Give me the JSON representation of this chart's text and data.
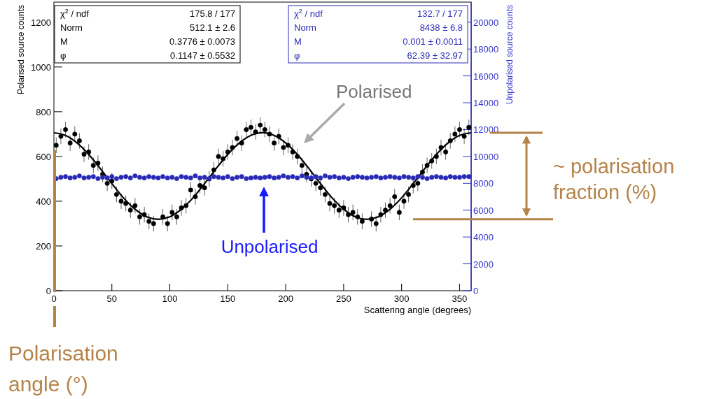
{
  "chart_data": {
    "type": "scatter",
    "xlabel": "Scattering angle (degrees)",
    "ylabel": "Polarised source counts",
    "y2label": "Unpolarised source counts",
    "xlim": [
      0,
      360
    ],
    "xticks": [
      0,
      50,
      100,
      150,
      200,
      250,
      300,
      350
    ],
    "ylim": [
      0,
      1290
    ],
    "yticks": [
      0,
      200,
      400,
      600,
      800,
      1000,
      1200
    ],
    "y2lim": [
      0,
      21500
    ],
    "y2ticks": [
      0,
      2000,
      4000,
      6000,
      8000,
      10000,
      12000,
      14000,
      16000,
      18000,
      20000
    ],
    "marker": "circle",
    "grid": false,
    "series": [
      {
        "color": "#000000",
        "x": [
          2,
          6,
          10,
          14,
          18,
          22,
          26,
          30,
          34,
          38,
          42,
          46,
          50,
          54,
          58,
          62,
          66,
          70,
          74,
          78,
          82,
          86,
          94,
          98,
          102,
          106,
          110,
          114,
          118,
          122,
          126,
          130,
          134,
          138,
          142,
          146,
          150,
          154,
          158,
          162,
          166,
          170,
          174,
          178,
          182,
          186,
          190,
          194,
          198,
          202,
          206,
          210,
          214,
          218,
          222,
          226,
          230,
          234,
          238,
          242,
          246,
          250,
          254,
          258,
          262,
          266,
          274,
          278,
          282,
          286,
          290,
          294,
          298,
          302,
          306,
          310,
          314,
          318,
          322,
          326,
          330,
          334,
          338,
          342,
          346,
          350,
          354,
          358
        ],
        "values": [
          650,
          690,
          720,
          660,
          700,
          670,
          610,
          620,
          560,
          570,
          520,
          480,
          490,
          430,
          400,
          390,
          360,
          380,
          330,
          340,
          310,
          300,
          330,
          300,
          350,
          330,
          370,
          380,
          450,
          420,
          470,
          460,
          500,
          540,
          600,
          590,
          620,
          640,
          680,
          660,
          720,
          730,
          710,
          740,
          720,
          700,
          660,
          690,
          640,
          650,
          620,
          600,
          560,
          520,
          500,
          480,
          460,
          430,
          390,
          380,
          360,
          370,
          340,
          350,
          330,
          310,
          320,
          300,
          340,
          360,
          380,
          420,
          350,
          400,
          430,
          470,
          480,
          530,
          560,
          580,
          600,
          640,
          620,
          670,
          700,
          720,
          690,
          730
        ],
        "errors": [
          35,
          35,
          35,
          35,
          35,
          35,
          35,
          35,
          35,
          35,
          35,
          35,
          35,
          35,
          35,
          35,
          35,
          35,
          35,
          35,
          35,
          35,
          35,
          35,
          35,
          35,
          35,
          35,
          35,
          35,
          35,
          35,
          35,
          35,
          35,
          35,
          35,
          35,
          35,
          35,
          35,
          35,
          35,
          35,
          35,
          35,
          35,
          35,
          35,
          35,
          35,
          35,
          35,
          35,
          35,
          35,
          35,
          35,
          35,
          35,
          35,
          35,
          35,
          35,
          35,
          35,
          35,
          35,
          35,
          35,
          35,
          35,
          35,
          35,
          35,
          35,
          35,
          35,
          35,
          35,
          35,
          35,
          35,
          35,
          35,
          35,
          35,
          35
        ]
      },
      {
        "type": "line",
        "color": "#000000",
        "marker": "none",
        "x": [
          0,
          10,
          20,
          30,
          40,
          45,
          50,
          60,
          70,
          80,
          90,
          100,
          110,
          120,
          130,
          135,
          140,
          150,
          160,
          170,
          180,
          190,
          200,
          210,
          220,
          225,
          230,
          240,
          250,
          260,
          270,
          280,
          290,
          300,
          310,
          315,
          320,
          330,
          340,
          350,
          360
        ],
        "values": [
          706,
          694,
          660,
          609,
          546,
          512,
          479,
          415,
          364,
          330,
          319,
          330,
          364,
          415,
          479,
          512,
          546,
          609,
          660,
          694,
          706,
          694,
          660,
          609,
          546,
          512,
          479,
          415,
          364,
          330,
          319,
          330,
          364,
          415,
          479,
          512,
          546,
          609,
          660,
          694,
          706
        ]
      },
      {
        "type": "scatter",
        "axis": "y2",
        "color": "#2a2ab8",
        "x": [
          2,
          6,
          10,
          14,
          18,
          22,
          26,
          30,
          34,
          38,
          42,
          46,
          50,
          54,
          58,
          62,
          66,
          70,
          74,
          78,
          82,
          86,
          90,
          94,
          98,
          102,
          106,
          110,
          114,
          118,
          122,
          126,
          130,
          134,
          138,
          142,
          146,
          150,
          154,
          158,
          162,
          166,
          170,
          174,
          178,
          182,
          186,
          190,
          194,
          198,
          202,
          206,
          210,
          214,
          218,
          222,
          226,
          230,
          234,
          238,
          242,
          246,
          250,
          254,
          258,
          262,
          266,
          270,
          274,
          278,
          282,
          286,
          290,
          294,
          298,
          302,
          306,
          310,
          314,
          318,
          322,
          326,
          330,
          334,
          338,
          342,
          346,
          350,
          354,
          358
        ],
        "values": [
          8350,
          8450,
          8500,
          8400,
          8450,
          8550,
          8400,
          8450,
          8500,
          8350,
          8450,
          8400,
          8500,
          8350,
          8450,
          8500,
          8400,
          8550,
          8450,
          8400,
          8500,
          8450,
          8400,
          8500,
          8400,
          8450,
          8350,
          8500,
          8450,
          8400,
          8550,
          8400,
          8450,
          8350,
          8500,
          8450,
          8400,
          8500,
          8350,
          8450,
          8500,
          8350,
          8400,
          8450,
          8400,
          8450,
          8500,
          8400,
          8450,
          8550,
          8450,
          8500,
          8400,
          8550,
          8450,
          8400,
          8500,
          8400,
          8550,
          8450,
          8500,
          8400,
          8450,
          8350,
          8450,
          8500,
          8450,
          8400,
          8450,
          8500,
          8400,
          8450,
          8500,
          8450,
          8400,
          8500,
          8450,
          8400,
          8500,
          8450,
          8350,
          8450,
          8500,
          8450,
          8400,
          8500,
          8450,
          8450,
          8500,
          8500
        ]
      }
    ],
    "annotations": [
      "χ$^{2}$ / ndf",
      "175.8 / 177",
      "Norm",
      "512.1 ± 2.6",
      "M",
      "0.3776 ± 0.0073",
      "φ",
      "0.1147 ± 0.5532",
      "χ$^{2}$ / ndf",
      "132.7 / 177",
      "Norm",
      "8438 ± 6.8",
      "M",
      "0.001 ± 0.0011",
      "φ",
      "62.39 ± 32.97",
      "Polarised",
      "Unpolarised",
      "~ polarisation\nfraction (%)",
      "Polarisation\nangle (°)"
    ]
  }
}
